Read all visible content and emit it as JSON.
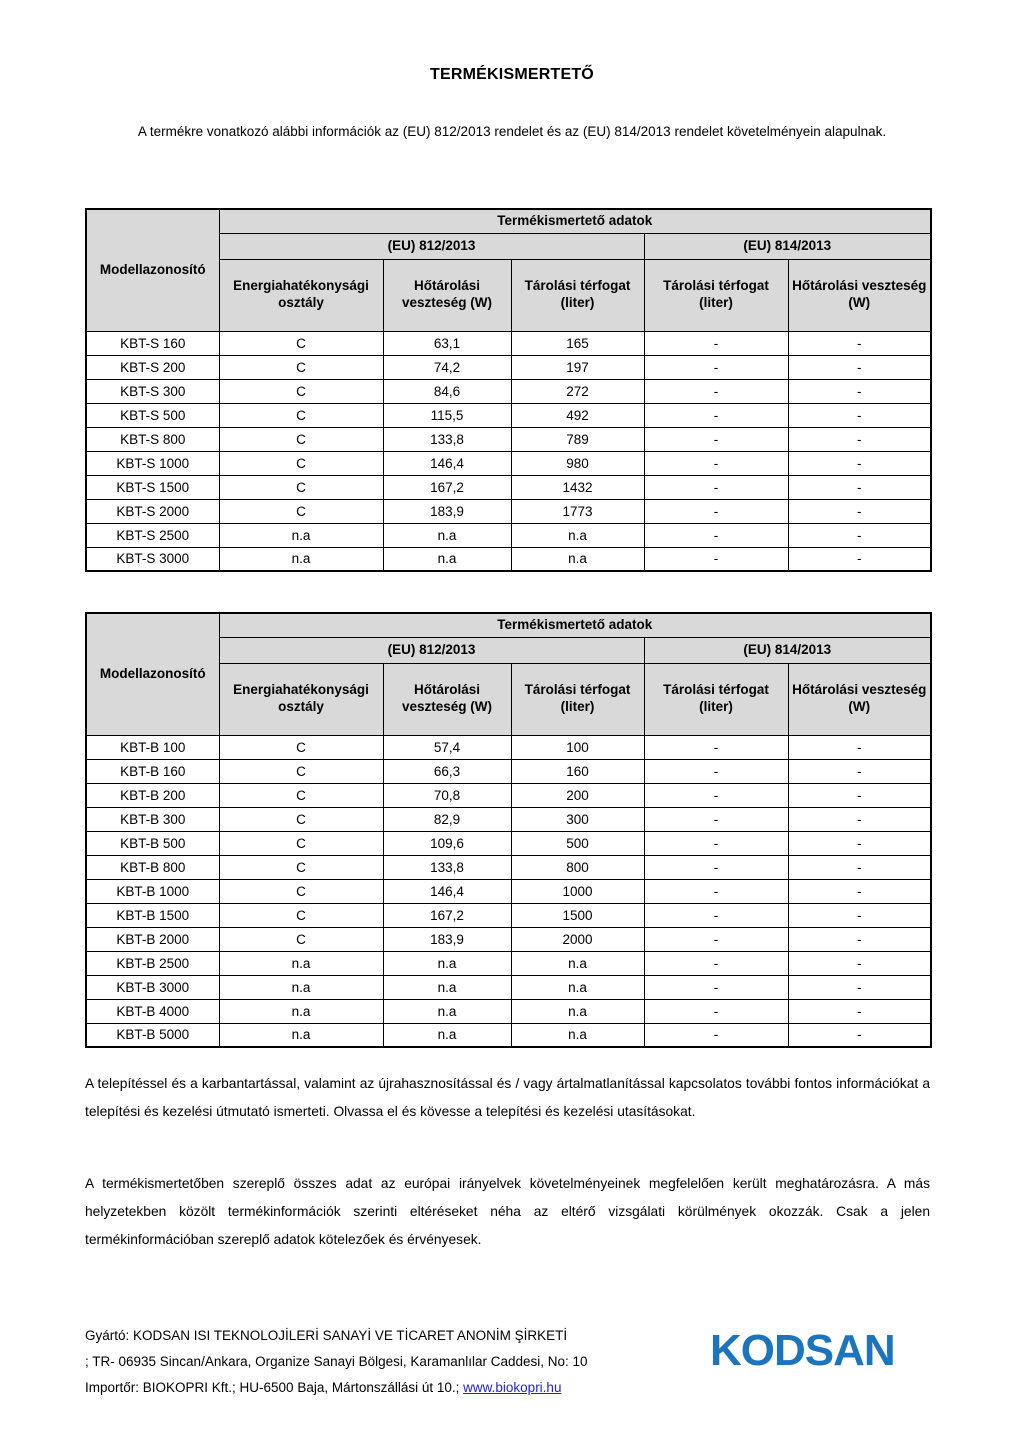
{
  "title": "TERMÉKISMERTETŐ",
  "intro": "A termékre vonatkozó alábbi információk az (EU) 812/2013 rendelet és az (EU) 814/2013 rendelet követelményein alapulnak.",
  "table_header": {
    "model_col": "Modellazonosító",
    "group_title": "Termékismertető adatok",
    "regulation_812": "(EU) 812/2013",
    "regulation_814": "(EU) 814/2013",
    "columns": [
      "Energiahatékonysági osztály",
      "Hőtárolási veszteség (W)",
      "Tárolási térfogat (liter)",
      "Tárolási térfogat (liter)",
      "Hőtárolási veszteség (W)"
    ]
  },
  "table1_rows": [
    [
      "KBT-S 160",
      "C",
      "63,1",
      "165",
      "-",
      "-"
    ],
    [
      "KBT-S 200",
      "C",
      "74,2",
      "197",
      "-",
      "-"
    ],
    [
      "KBT-S 300",
      "C",
      "84,6",
      "272",
      "-",
      "-"
    ],
    [
      "KBT-S 500",
      "C",
      "115,5",
      "492",
      "-",
      "-"
    ],
    [
      "KBT-S 800",
      "C",
      "133,8",
      "789",
      "-",
      "-"
    ],
    [
      "KBT-S 1000",
      "C",
      "146,4",
      "980",
      "-",
      "-"
    ],
    [
      "KBT-S 1500",
      "C",
      "167,2",
      "1432",
      "-",
      "-"
    ],
    [
      "KBT-S 2000",
      "C",
      "183,9",
      "1773",
      "-",
      "-"
    ],
    [
      "KBT-S 2500",
      "n.a",
      "n.a",
      "n.a",
      "-",
      "-"
    ],
    [
      "KBT-S 3000",
      "n.a",
      "n.a",
      "n.a",
      "-",
      "-"
    ]
  ],
  "table2_rows": [
    [
      "KBT-B 100",
      "C",
      "57,4",
      "100",
      "-",
      "-"
    ],
    [
      "KBT-B 160",
      "C",
      "66,3",
      "160",
      "-",
      "-"
    ],
    [
      "KBT-B 200",
      "C",
      "70,8",
      "200",
      "-",
      "-"
    ],
    [
      "KBT-B 300",
      "C",
      "82,9",
      "300",
      "-",
      "-"
    ],
    [
      "KBT-B 500",
      "C",
      "109,6",
      "500",
      "-",
      "-"
    ],
    [
      "KBT-B 800",
      "C",
      "133,8",
      "800",
      "-",
      "-"
    ],
    [
      "KBT-B 1000",
      "C",
      "146,4",
      "1000",
      "-",
      "-"
    ],
    [
      "KBT-B 1500",
      "C",
      "167,2",
      "1500",
      "-",
      "-"
    ],
    [
      "KBT-B 2000",
      "C",
      "183,9",
      "2000",
      "-",
      "-"
    ],
    [
      "KBT-B 2500",
      "n.a",
      "n.a",
      "n.a",
      "-",
      "-"
    ],
    [
      "KBT-B 3000",
      "n.a",
      "n.a",
      "n.a",
      "-",
      "-"
    ],
    [
      "KBT-B 4000",
      "n.a",
      "n.a",
      "n.a",
      "-",
      "-"
    ],
    [
      "KBT-B 5000",
      "n.a",
      "n.a",
      "n.a",
      "-",
      "-"
    ]
  ],
  "paragraph1": "A telepítéssel és a karbantartással, valamint az újrahasznosítással és / vagy ártalmatlanítással kapcsolatos további fontos információkat a telepítési és kezelési útmutató ismerteti. Olvassa el és kövesse a telepítési és kezelési utasításokat.",
  "paragraph2": "A termékismertetőben szereplő összes adat az európai irányelvek követelményeinek megfelelően került meghatározásra. A más helyzetekben közölt termékinformációk szerinti eltéréseket néha az eltérő vizsgálati körülmények okozzák. Csak a jelen termékinformációban szereplő adatok kötelezőek és érvényesek.",
  "footer": {
    "line1": "Gyártó: KODSAN ISI TEKNOLOJİLERİ SANAYİ VE TİCARET ANONİM ŞİRKETİ",
    "line2": "; TR- 06935 Sincan/Ankara, Organize Sanayi Bölgesi, Karamanlılar Caddesi, No: 10",
    "line3_prefix": "Importőr: BIOKOPRI Kft.; HU-6500 Baja, Mártonszállási út 10.; ",
    "link": "www.biokopri.hu",
    "logo_text": "KODSAN"
  },
  "colors": {
    "header_bg": "#d9d9d9",
    "link_blue": "#2222cc",
    "logo_blue": "#1b74bc"
  }
}
